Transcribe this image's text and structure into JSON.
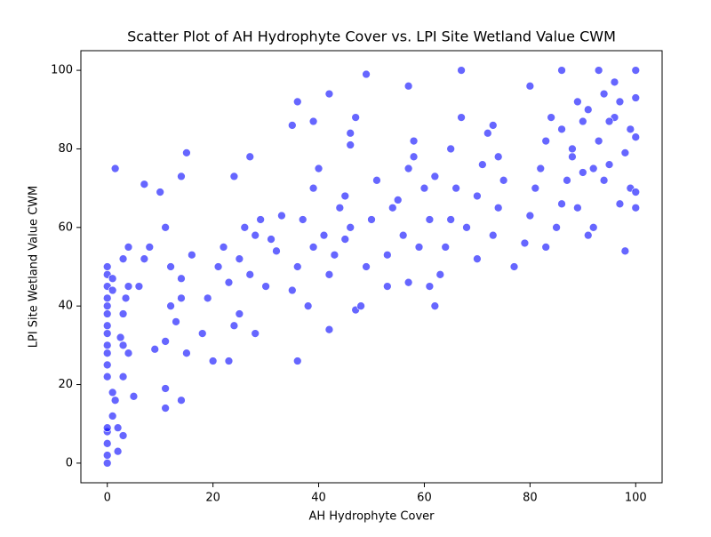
{
  "chart_data": {
    "type": "scatter",
    "title": "Scatter Plot of AH Hydrophyte Cover vs. LPI Site Wetland Value CWM",
    "x_label": "AH Hydrophyte Cover",
    "y_label": "LPI Site Wetland Value CWM",
    "color": "#0000ff",
    "xlim": [
      -5,
      105
    ],
    "ylim": [
      -5,
      105
    ],
    "xticks": [
      0,
      20,
      40,
      60,
      80,
      100
    ],
    "yticks": [
      0,
      20,
      40,
      60,
      80,
      100
    ],
    "grid": false,
    "x": [
      0,
      0,
      0,
      0,
      0,
      0,
      0,
      0,
      0,
      0,
      0,
      0,
      0,
      0,
      0,
      0,
      0,
      1,
      1,
      1.5,
      1.5,
      1,
      1,
      2,
      2,
      3,
      3,
      3,
      2.5,
      3,
      3.5,
      4,
      3,
      4,
      5,
      4,
      6,
      7,
      7,
      8,
      9,
      10,
      11,
      11,
      11,
      12,
      11,
      12,
      13,
      14,
      14,
      14,
      14,
      15,
      15,
      16,
      20,
      18,
      19,
      21,
      22,
      24,
      23,
      25,
      26,
      28,
      23,
      25,
      27,
      29,
      24,
      30,
      28,
      31,
      33,
      27,
      32,
      38,
      36,
      39,
      37,
      39,
      42,
      41,
      35,
      36,
      36,
      35,
      43,
      44,
      40,
      39,
      47,
      45,
      46,
      42,
      42,
      46,
      45,
      48,
      49,
      50,
      51,
      46,
      47,
      49,
      53,
      54,
      57,
      58,
      53,
      56,
      55,
      58,
      60,
      57,
      59,
      57,
      61,
      62,
      62,
      63,
      64,
      65,
      66,
      65,
      67,
      61,
      68,
      70,
      71,
      72,
      67,
      70,
      73,
      74,
      75,
      74,
      73,
      77,
      79,
      80,
      81,
      82,
      83,
      84,
      80,
      85,
      86,
      87,
      88,
      86,
      89,
      86,
      83,
      89,
      90,
      88,
      90,
      98,
      92,
      97,
      99,
      95,
      93,
      96,
      94,
      93,
      91,
      94,
      98,
      99,
      97,
      96,
      100,
      100,
      92,
      100,
      91,
      100,
      100,
      95
    ],
    "values": [
      0,
      2,
      5,
      8,
      9,
      22,
      25,
      28,
      30,
      33,
      35,
      38,
      40,
      42,
      45,
      48,
      50,
      12,
      18,
      16,
      75,
      44,
      47,
      3,
      9,
      7,
      22,
      30,
      32,
      38,
      42,
      45,
      52,
      55,
      17,
      28,
      45,
      52,
      71,
      55,
      29,
      69,
      14,
      19,
      31,
      50,
      60,
      40,
      36,
      47,
      42,
      16,
      73,
      79,
      28,
      53,
      26,
      33,
      42,
      50,
      55,
      35,
      46,
      52,
      60,
      58,
      26,
      38,
      48,
      62,
      73,
      45,
      33,
      57,
      63,
      78,
      54,
      40,
      50,
      55,
      62,
      70,
      48,
      58,
      86,
      92,
      26,
      44,
      53,
      65,
      75,
      87,
      39,
      57,
      60,
      34,
      94,
      81,
      68,
      40,
      50,
      62,
      72,
      84,
      88,
      99,
      53,
      65,
      75,
      82,
      45,
      58,
      67,
      78,
      70,
      46,
      55,
      96,
      62,
      73,
      40,
      48,
      55,
      62,
      70,
      80,
      88,
      45,
      60,
      68,
      76,
      84,
      100,
      52,
      58,
      65,
      72,
      78,
      86,
      50,
      56,
      63,
      70,
      75,
      82,
      88,
      96,
      60,
      66,
      72,
      78,
      85,
      92,
      100,
      55,
      65,
      74,
      80,
      87,
      54,
      60,
      66,
      70,
      76,
      82,
      88,
      94,
      100,
      58,
      72,
      79,
      85,
      92,
      97,
      65,
      69,
      75,
      83,
      90,
      100,
      93,
      87
    ]
  }
}
